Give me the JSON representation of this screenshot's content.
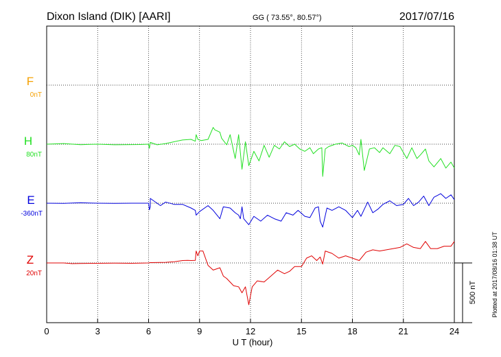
{
  "header": {
    "station": "Dixon Island (DIK)  [AARI]",
    "coords": "GG ( 73.55°,  80.57°)",
    "date": "2017/07/16"
  },
  "footer": {
    "plotted": "Plotted at 2017/08/16 01:38 UT"
  },
  "scale_bar": {
    "label": "500 nT",
    "value_nT": 500
  },
  "colors": {
    "F": "#f5a000",
    "H": "#22e022",
    "E": "#0000dd",
    "Z": "#e00000"
  },
  "chart_data": {
    "type": "line",
    "xlabel": "U T (hour)",
    "xlim": [
      0,
      24
    ],
    "xticks": [
      0,
      3,
      6,
      9,
      12,
      15,
      18,
      21,
      24
    ],
    "grid": true,
    "series": [
      {
        "name": "F",
        "baseline_label": "0nT",
        "color": "#f5a000",
        "points": []
      },
      {
        "name": "H",
        "baseline_label": "80nT",
        "color": "#22e022",
        "points": [
          [
            0,
            0
          ],
          [
            1,
            5
          ],
          [
            2,
            -4
          ],
          [
            3,
            0
          ],
          [
            4,
            -5
          ],
          [
            5.5,
            -3
          ],
          [
            6,
            0
          ],
          [
            6.05,
            -35
          ],
          [
            6.1,
            15
          ],
          [
            6.5,
            -5
          ],
          [
            7,
            5
          ],
          [
            7.5,
            20
          ],
          [
            8,
            35
          ],
          [
            8.5,
            40
          ],
          [
            8.75,
            25
          ],
          [
            8.8,
            80
          ],
          [
            8.9,
            40
          ],
          [
            9.1,
            30
          ],
          [
            9.5,
            40
          ],
          [
            9.8,
            140
          ],
          [
            9.9,
            120
          ],
          [
            10.2,
            100
          ],
          [
            10.3,
            50
          ],
          [
            10.6,
            -5
          ],
          [
            10.8,
            80
          ],
          [
            11.1,
            -120
          ],
          [
            11.3,
            80
          ],
          [
            11.5,
            -210
          ],
          [
            11.7,
            20
          ],
          [
            11.9,
            -180
          ],
          [
            12.2,
            -60
          ],
          [
            12.5,
            -140
          ],
          [
            12.8,
            -10
          ],
          [
            13.1,
            -110
          ],
          [
            13.4,
            -10
          ],
          [
            13.7,
            -40
          ],
          [
            14,
            20
          ],
          [
            14.3,
            -20
          ],
          [
            14.6,
            0
          ],
          [
            14.9,
            -40
          ],
          [
            15.2,
            -60
          ],
          [
            15.5,
            -30
          ],
          [
            15.7,
            -80
          ],
          [
            16.0,
            -40
          ],
          [
            16.2,
            -30
          ],
          [
            16.25,
            -270
          ],
          [
            16.4,
            -40
          ],
          [
            16.6,
            -20
          ],
          [
            17,
            0
          ],
          [
            17.4,
            10
          ],
          [
            17.6,
            -5
          ],
          [
            17.8,
            -20
          ],
          [
            18.0,
            -10
          ],
          [
            18.2,
            -30
          ],
          [
            18.4,
            -90
          ],
          [
            18.5,
            40
          ],
          [
            18.7,
            -220
          ],
          [
            19,
            -40
          ],
          [
            19.3,
            -30
          ],
          [
            19.6,
            -70
          ],
          [
            19.8,
            -30
          ],
          [
            20.2,
            -80
          ],
          [
            20.5,
            -10
          ],
          [
            20.8,
            -20
          ],
          [
            21.2,
            -120
          ],
          [
            21.5,
            -30
          ],
          [
            21.8,
            -120
          ],
          [
            22.0,
            -90
          ],
          [
            22.3,
            -40
          ],
          [
            22.5,
            -140
          ],
          [
            22.8,
            -190
          ],
          [
            23.2,
            -120
          ],
          [
            23.5,
            -200
          ],
          [
            23.8,
            -150
          ],
          [
            24,
            -200
          ]
        ]
      },
      {
        "name": "E",
        "baseline_label": "-360nT",
        "color": "#0000dd",
        "points": [
          [
            0,
            0
          ],
          [
            1,
            -2
          ],
          [
            2,
            4
          ],
          [
            3,
            0
          ],
          [
            4,
            -2
          ],
          [
            5,
            0
          ],
          [
            6,
            0
          ],
          [
            6.05,
            -55
          ],
          [
            6.1,
            -30
          ],
          [
            6.1,
            40
          ],
          [
            6.3,
            20
          ],
          [
            6.7,
            -20
          ],
          [
            7,
            10
          ],
          [
            7.5,
            -10
          ],
          [
            8,
            -10
          ],
          [
            8.5,
            -40
          ],
          [
            8.75,
            -60
          ],
          [
            8.8,
            -100
          ],
          [
            9,
            -70
          ],
          [
            9.5,
            -20
          ],
          [
            9.8,
            -60
          ],
          [
            10.2,
            -130
          ],
          [
            10.4,
            -30
          ],
          [
            10.8,
            -40
          ],
          [
            11.1,
            -80
          ],
          [
            11.3,
            -100
          ],
          [
            11.4,
            -130
          ],
          [
            11.5,
            -30
          ],
          [
            11.6,
            -130
          ],
          [
            11.9,
            -180
          ],
          [
            12.2,
            -110
          ],
          [
            12.6,
            -150
          ],
          [
            13,
            -100
          ],
          [
            13.4,
            -130
          ],
          [
            13.8,
            -150
          ],
          [
            14.1,
            -80
          ],
          [
            14.5,
            -100
          ],
          [
            14.8,
            -60
          ],
          [
            15.2,
            -110
          ],
          [
            15.5,
            -120
          ],
          [
            15.8,
            -40
          ],
          [
            16.0,
            -30
          ],
          [
            16.1,
            -150
          ],
          [
            16.25,
            -200
          ],
          [
            16.5,
            -40
          ],
          [
            16.8,
            -60
          ],
          [
            17.2,
            -30
          ],
          [
            17.6,
            -60
          ],
          [
            18,
            -120
          ],
          [
            18.3,
            -60
          ],
          [
            18.5,
            -110
          ],
          [
            18.7,
            -50
          ],
          [
            18.9,
            10
          ],
          [
            19.2,
            -80
          ],
          [
            19.5,
            -50
          ],
          [
            19.8,
            -10
          ],
          [
            20.2,
            20
          ],
          [
            20.6,
            -20
          ],
          [
            21,
            -10
          ],
          [
            21.3,
            40
          ],
          [
            21.6,
            -20
          ],
          [
            21.9,
            10
          ],
          [
            22.2,
            60
          ],
          [
            22.5,
            -20
          ],
          [
            22.8,
            50
          ],
          [
            23.2,
            80
          ],
          [
            23.5,
            40
          ],
          [
            23.8,
            70
          ],
          [
            24,
            30
          ]
        ]
      },
      {
        "name": "Z",
        "baseline_label": "20nT",
        "color": "#e00000",
        "points": [
          [
            0,
            0
          ],
          [
            1,
            0
          ],
          [
            1.5,
            -6
          ],
          [
            2,
            -4
          ],
          [
            3,
            -3
          ],
          [
            4,
            -2
          ],
          [
            5,
            -3
          ],
          [
            6,
            0
          ],
          [
            6.1,
            3
          ],
          [
            7,
            5
          ],
          [
            7.5,
            10
          ],
          [
            8,
            20
          ],
          [
            8.3,
            22
          ],
          [
            8.5,
            20
          ],
          [
            8.75,
            22
          ],
          [
            8.8,
            100
          ],
          [
            8.9,
            60
          ],
          [
            9,
            100
          ],
          [
            9.2,
            100
          ],
          [
            9.5,
            -20
          ],
          [
            9.8,
            -60
          ],
          [
            10.2,
            -40
          ],
          [
            10.4,
            -110
          ],
          [
            10.6,
            -130
          ],
          [
            11,
            -190
          ],
          [
            11.3,
            -200
          ],
          [
            11.5,
            -250
          ],
          [
            11.7,
            -200
          ],
          [
            11.9,
            -350
          ],
          [
            12.1,
            -200
          ],
          [
            12.4,
            -150
          ],
          [
            12.8,
            -160
          ],
          [
            13.2,
            -110
          ],
          [
            13.6,
            -60
          ],
          [
            14.0,
            -90
          ],
          [
            14.3,
            -70
          ],
          [
            14.6,
            -30
          ],
          [
            15.0,
            -30
          ],
          [
            15.3,
            40
          ],
          [
            15.6,
            60
          ],
          [
            15.9,
            20
          ],
          [
            16.1,
            50
          ],
          [
            16.25,
            -10
          ],
          [
            16.4,
            100
          ],
          [
            16.8,
            80
          ],
          [
            17.2,
            40
          ],
          [
            17.6,
            60
          ],
          [
            18,
            40
          ],
          [
            18.4,
            20
          ],
          [
            18.8,
            90
          ],
          [
            19.2,
            110
          ],
          [
            19.6,
            100
          ],
          [
            20,
            110
          ],
          [
            20.4,
            120
          ],
          [
            20.8,
            130
          ],
          [
            21.2,
            160
          ],
          [
            21.6,
            130
          ],
          [
            22,
            120
          ],
          [
            22.3,
            180
          ],
          [
            22.6,
            120
          ],
          [
            23,
            120
          ],
          [
            23.4,
            140
          ],
          [
            23.8,
            140
          ],
          [
            24,
            180
          ]
        ]
      }
    ]
  }
}
